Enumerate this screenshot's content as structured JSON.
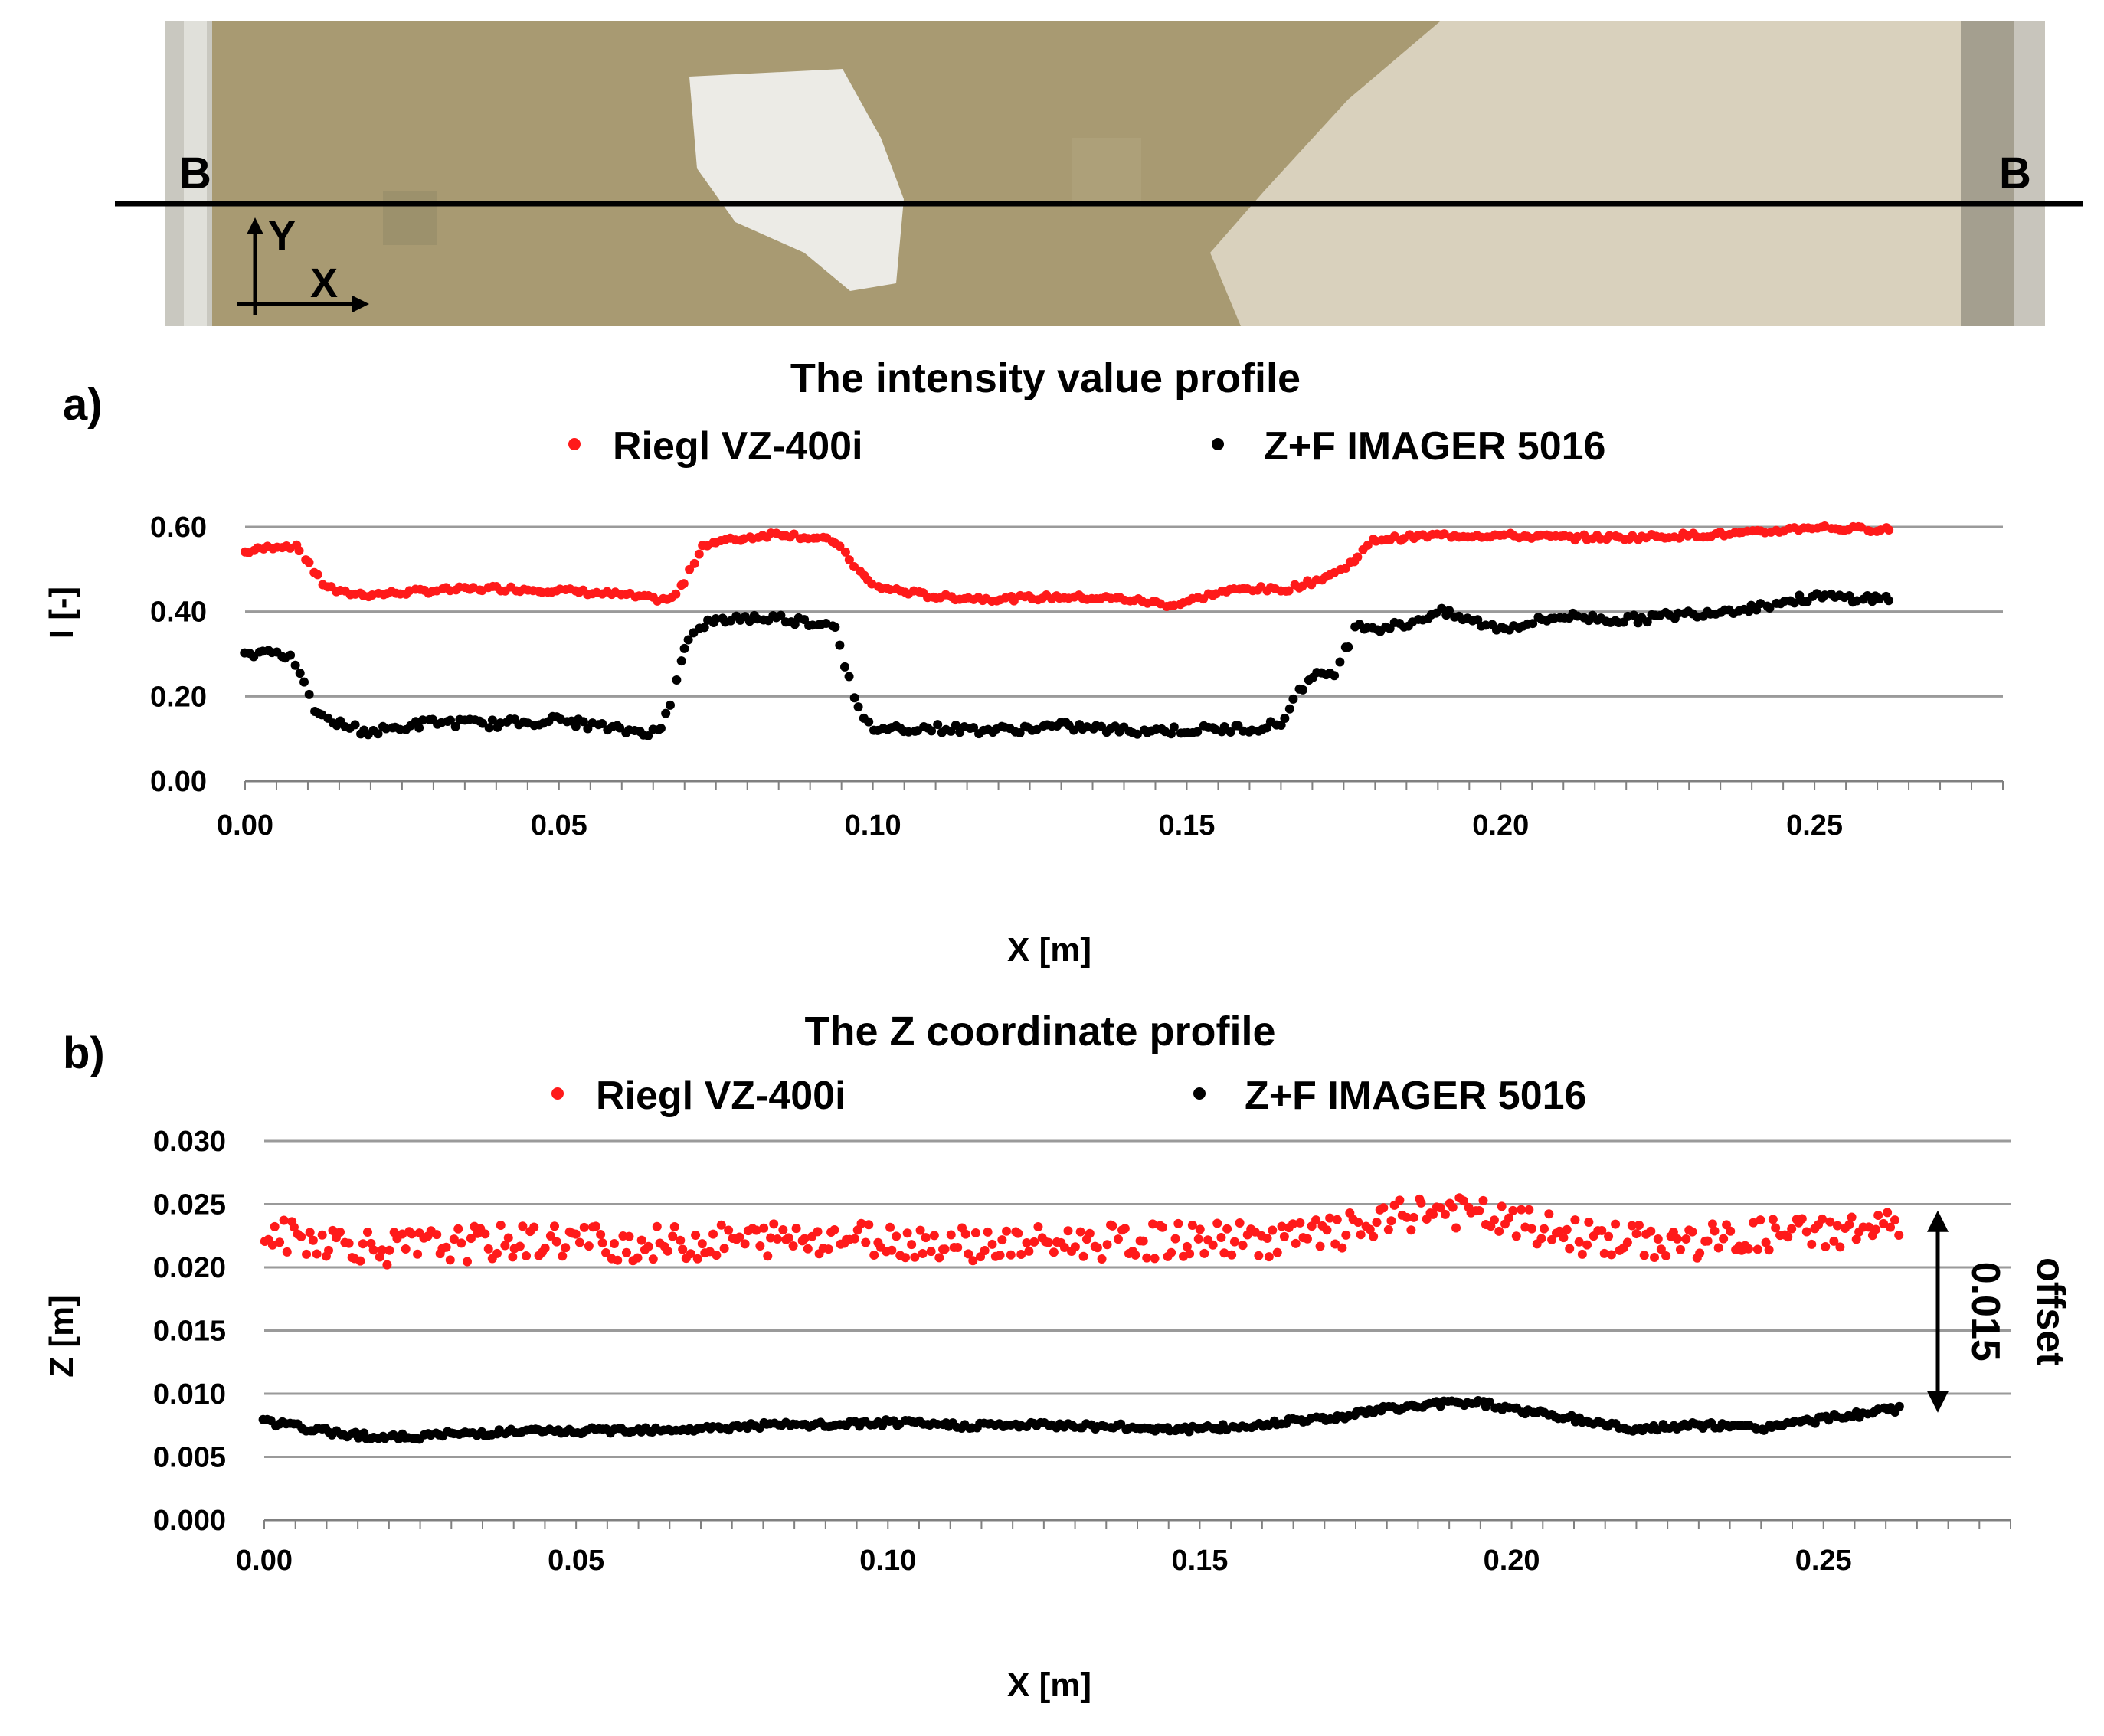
{
  "photo": {
    "marker_left": "B",
    "marker_right": "B",
    "axis_y_label": "Y",
    "axis_x_label": "X"
  },
  "chart_data": [
    {
      "panel_label": "a)",
      "type": "scatter",
      "title": "The intensity value profile",
      "xlabel": "X [m]",
      "ylabel": "I [-]",
      "xlim": [
        0,
        0.28
      ],
      "ylim": [
        0,
        0.6
      ],
      "x_ticks": [
        "0.00",
        "0.05",
        "0.10",
        "0.15",
        "0.20",
        "0.25"
      ],
      "y_ticks": [
        "0.00",
        "0.20",
        "0.40",
        "0.60"
      ],
      "grid": true,
      "legend_position": "top",
      "series": [
        {
          "name": "Riegl VZ-400i",
          "color": "#ff1a1a",
          "x": [
            0.0,
            0.005,
            0.008,
            0.01,
            0.012,
            0.015,
            0.02,
            0.03,
            0.04,
            0.05,
            0.06,
            0.065,
            0.068,
            0.07,
            0.073,
            0.078,
            0.085,
            0.09,
            0.094,
            0.097,
            0.1,
            0.11,
            0.12,
            0.13,
            0.14,
            0.148,
            0.155,
            0.16,
            0.165,
            0.17,
            0.175,
            0.18,
            0.19,
            0.2,
            0.21,
            0.22,
            0.23,
            0.24,
            0.25,
            0.255,
            0.262
          ],
          "y": [
            0.54,
            0.555,
            0.555,
            0.52,
            0.47,
            0.445,
            0.44,
            0.45,
            0.455,
            0.45,
            0.44,
            0.43,
            0.43,
            0.47,
            0.56,
            0.57,
            0.585,
            0.575,
            0.565,
            0.51,
            0.46,
            0.435,
            0.43,
            0.435,
            0.43,
            0.415,
            0.445,
            0.455,
            0.45,
            0.47,
            0.5,
            0.57,
            0.58,
            0.58,
            0.575,
            0.575,
            0.58,
            0.585,
            0.6,
            0.595,
            0.595
          ]
        },
        {
          "name": "Z+F IMAGER 5016",
          "color": "#000000",
          "x": [
            0.0,
            0.005,
            0.008,
            0.01,
            0.012,
            0.015,
            0.02,
            0.03,
            0.04,
            0.05,
            0.06,
            0.066,
            0.068,
            0.07,
            0.073,
            0.078,
            0.085,
            0.09,
            0.094,
            0.096,
            0.098,
            0.1,
            0.11,
            0.12,
            0.13,
            0.14,
            0.15,
            0.16,
            0.165,
            0.168,
            0.171,
            0.174,
            0.177,
            0.18,
            0.185,
            0.19,
            0.2,
            0.21,
            0.22,
            0.23,
            0.24,
            0.25,
            0.262
          ],
          "y": [
            0.3,
            0.31,
            0.28,
            0.2,
            0.15,
            0.135,
            0.115,
            0.14,
            0.135,
            0.145,
            0.12,
            0.115,
            0.2,
            0.32,
            0.37,
            0.385,
            0.385,
            0.375,
            0.37,
            0.25,
            0.15,
            0.125,
            0.125,
            0.12,
            0.13,
            0.12,
            0.12,
            0.125,
            0.135,
            0.22,
            0.25,
            0.26,
            0.375,
            0.36,
            0.37,
            0.4,
            0.36,
            0.39,
            0.38,
            0.395,
            0.41,
            0.435,
            0.43
          ]
        }
      ]
    },
    {
      "panel_label": "b)",
      "type": "scatter",
      "title": "The Z coordinate profile",
      "xlabel": "X [m]",
      "ylabel": "Z [m]",
      "xlim": [
        0,
        0.28
      ],
      "ylim": [
        0,
        0.03
      ],
      "x_ticks": [
        "0.00",
        "0.05",
        "0.10",
        "0.15",
        "0.20",
        "0.25"
      ],
      "y_ticks": [
        "0.000",
        "0.005",
        "0.010",
        "0.015",
        "0.020",
        "0.025",
        "0.030"
      ],
      "grid": true,
      "legend_position": "top",
      "annotation": {
        "line1": "0.015",
        "line2": "offset",
        "from": 0.0085,
        "to": 0.0245
      },
      "series": [
        {
          "name": "Riegl VZ-400i",
          "color": "#ff1a1a",
          "x": [
            0.0,
            0.01,
            0.02,
            0.03,
            0.04,
            0.05,
            0.06,
            0.07,
            0.08,
            0.09,
            0.1,
            0.11,
            0.12,
            0.13,
            0.14,
            0.15,
            0.16,
            0.17,
            0.18,
            0.185,
            0.19,
            0.195,
            0.2,
            0.21,
            0.22,
            0.23,
            0.24,
            0.25,
            0.262
          ],
          "y": [
            0.0225,
            0.0222,
            0.0215,
            0.0218,
            0.022,
            0.0222,
            0.0218,
            0.022,
            0.0222,
            0.0225,
            0.0222,
            0.022,
            0.0218,
            0.022,
            0.022,
            0.0222,
            0.0222,
            0.0225,
            0.0235,
            0.0245,
            0.0245,
            0.024,
            0.0235,
            0.0225,
            0.022,
            0.022,
            0.0225,
            0.0228,
            0.0232
          ]
        },
        {
          "name": "Z+F IMAGER 5016",
          "color": "#000000",
          "x": [
            0.0,
            0.01,
            0.02,
            0.03,
            0.04,
            0.05,
            0.06,
            0.07,
            0.08,
            0.09,
            0.1,
            0.11,
            0.12,
            0.13,
            0.14,
            0.15,
            0.16,
            0.165,
            0.17,
            0.18,
            0.185,
            0.19,
            0.195,
            0.2,
            0.21,
            0.22,
            0.23,
            0.24,
            0.25,
            0.262
          ],
          "y": [
            0.0078,
            0.007,
            0.0065,
            0.0068,
            0.007,
            0.007,
            0.0072,
            0.0072,
            0.0075,
            0.0075,
            0.0077,
            0.0075,
            0.0075,
            0.0075,
            0.0073,
            0.0072,
            0.0075,
            0.008,
            0.008,
            0.0088,
            0.009,
            0.0093,
            0.0093,
            0.0088,
            0.008,
            0.0072,
            0.0075,
            0.0073,
            0.008,
            0.0088
          ]
        }
      ]
    }
  ]
}
